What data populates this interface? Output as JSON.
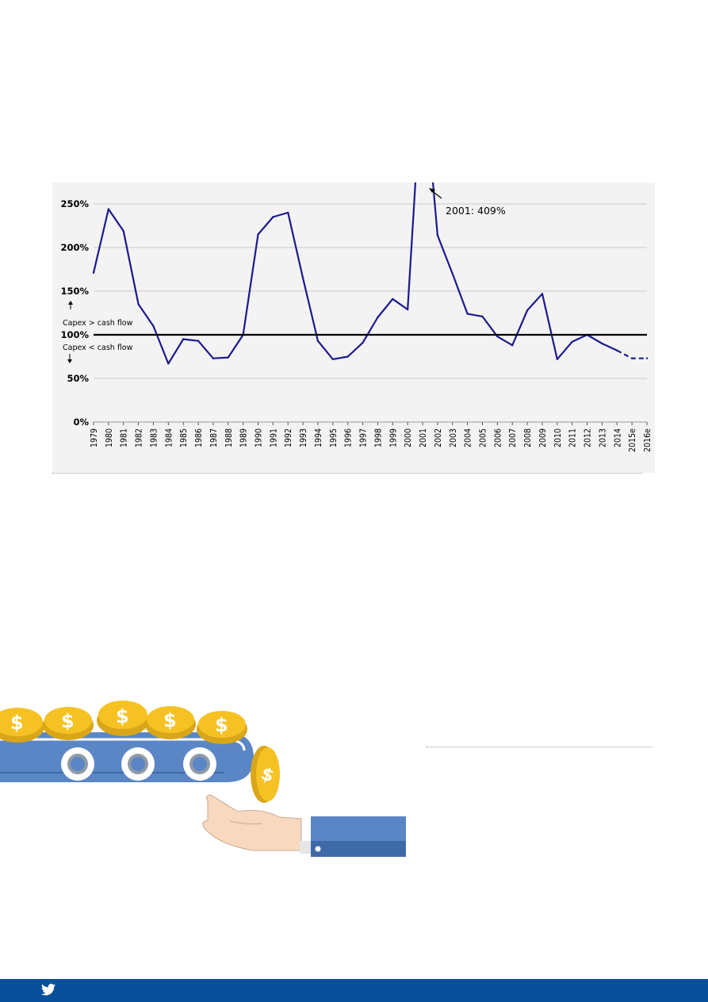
{
  "colors": {
    "series": "#1b1a8c",
    "reference_line": "#000000",
    "grid": "#c8c8c8",
    "panel_bg": "#f3f3f3",
    "footer": "#0a4f9a",
    "coin": "#f6c223",
    "belt": "#5b86c6",
    "sleeve": "#5b86c6",
    "skin": "#f8d9bf"
  },
  "chart_data": {
    "type": "line",
    "x": [
      "1979",
      "1980",
      "1981",
      "1982",
      "1983",
      "1984",
      "1985",
      "1986",
      "1987",
      "1988",
      "1989",
      "1990",
      "1991",
      "1992",
      "1993",
      "1994",
      "1995",
      "1996",
      "1997",
      "1998",
      "1999",
      "2000",
      "2001",
      "2002",
      "2003",
      "2004",
      "2005",
      "2006",
      "2007",
      "2008",
      "2009",
      "2010",
      "2011",
      "2012",
      "2013",
      "2014",
      "2015e",
      "2016e"
    ],
    "series": [
      {
        "values": [
          171,
          244,
          219,
          135,
          110,
          67,
          95,
          93,
          73,
          74,
          100,
          215,
          235,
          240,
          165,
          93,
          72,
          75,
          91,
          120,
          141,
          129,
          409,
          214,
          170,
          124,
          121,
          98,
          88,
          128,
          147,
          72,
          92,
          100,
          90,
          82,
          73,
          73
        ],
        "estimated_from": "2015e"
      }
    ],
    "reference_line": {
      "value": 100
    },
    "ylim": [
      0,
      250
    ],
    "yticks": [
      "0%",
      "50%",
      "100%",
      "150%",
      "200%",
      "250%"
    ],
    "grid": true,
    "annotations": {
      "above_label": "Capex > cash flow",
      "below_label": "Capex < cash flow",
      "peak_label": "2001: 409%"
    }
  },
  "icons": {
    "footer": "twitter-icon",
    "illustration": [
      "dollar-coin-icon",
      "gear-icon",
      "hand-icon"
    ]
  }
}
